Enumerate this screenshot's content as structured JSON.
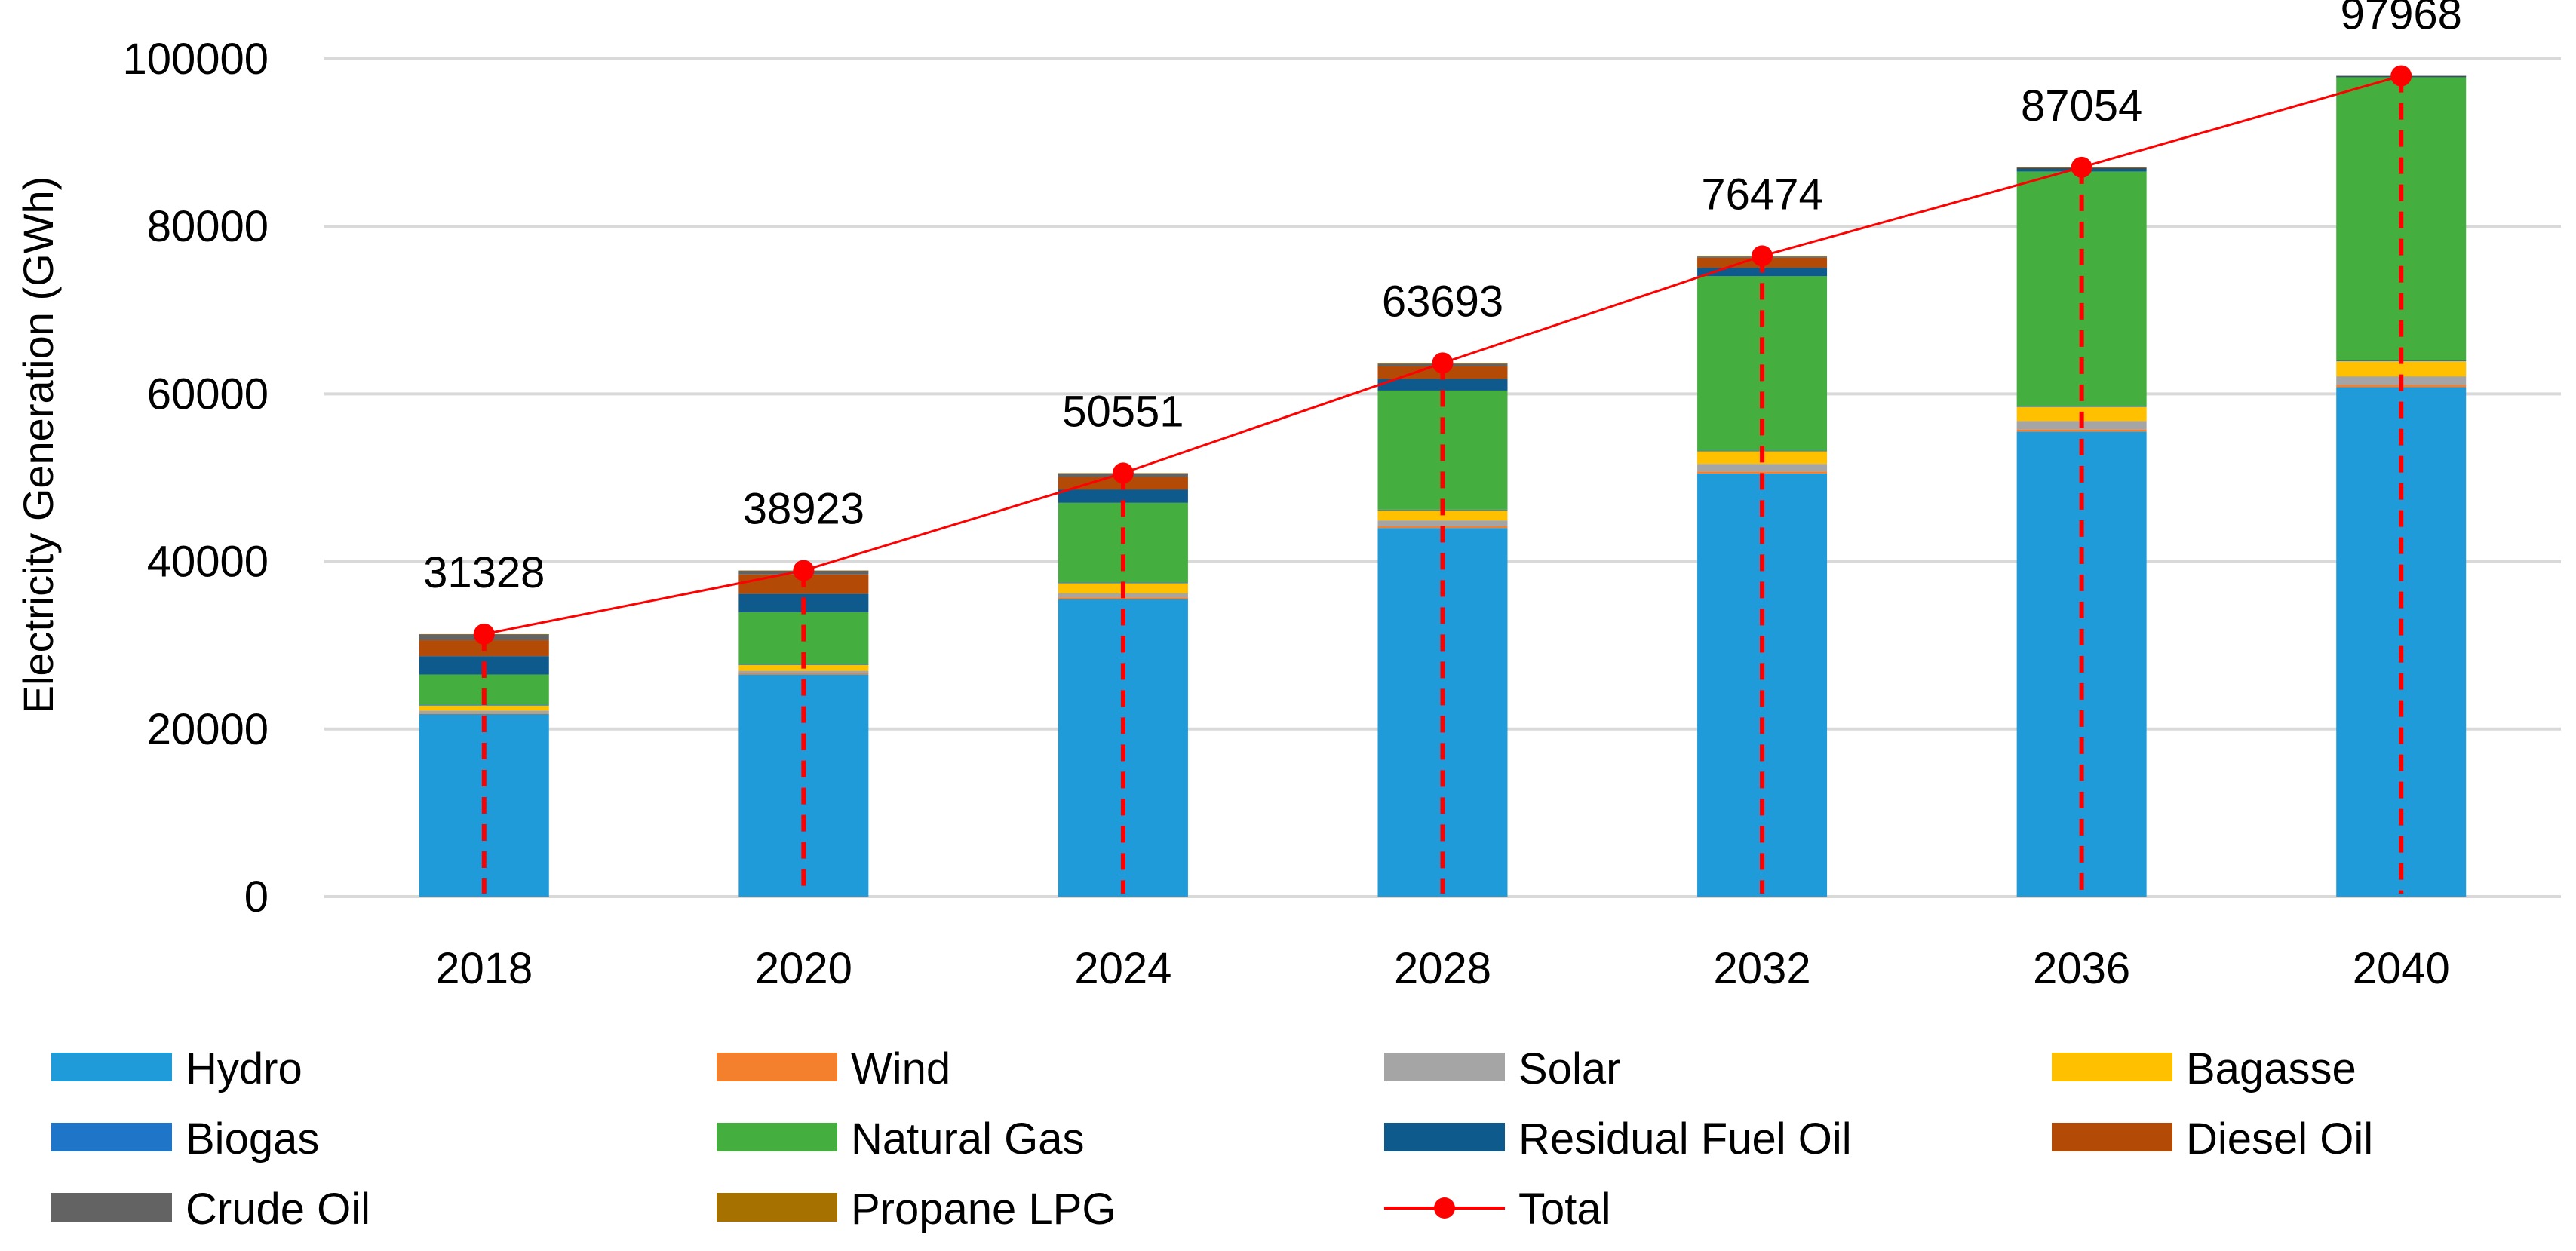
{
  "chart_data": {
    "type": "bar",
    "stacked": true,
    "title": "",
    "xlabel": "",
    "ylabel": "Electricity Generation (GWh)",
    "ylim": [
      0,
      100000
    ],
    "yticks": [
      "0",
      "20000",
      "40000",
      "60000",
      "80000",
      "100000"
    ],
    "categories": [
      "2018",
      "2020",
      "2024",
      "2028",
      "2032",
      "2036",
      "2040"
    ],
    "grid": "horizontal",
    "legend_position": "bottom",
    "series": [
      {
        "name": "Hydro",
        "color": "#1F9BD9",
        "values": [
          21800,
          26500,
          35500,
          44000,
          50500,
          55500,
          60800
        ]
      },
      {
        "name": "Wind",
        "color": "#F47F2C",
        "values": [
          100,
          150,
          200,
          200,
          250,
          250,
          300
        ]
      },
      {
        "name": "Solar",
        "color": "#A5A5A5",
        "values": [
          300,
          300,
          500,
          700,
          900,
          1000,
          1000
        ]
      },
      {
        "name": "Bagasse",
        "color": "#FFC000",
        "values": [
          600,
          700,
          1200,
          1200,
          1500,
          1700,
          1800
        ]
      },
      {
        "name": "Biogas",
        "color": "#1F75C8",
        "values": [
          100,
          100,
          100,
          100,
          100,
          100,
          100
        ]
      },
      {
        "name": "Natural Gas",
        "color": "#44AE3E",
        "values": [
          3600,
          6200,
          9500,
          14200,
          20800,
          28000,
          33800
        ]
      },
      {
        "name": "Residual Fuel Oil",
        "color": "#0F5A8C",
        "values": [
          2200,
          2200,
          1600,
          1400,
          1000,
          400,
          150
        ]
      },
      {
        "name": "Diesel Oil",
        "color": "#B34A06",
        "values": [
          1900,
          2300,
          1500,
          1500,
          1200,
          100,
          18
        ]
      },
      {
        "name": "Crude Oil",
        "color": "#636363",
        "values": [
          700,
          450,
          400,
          300,
          150,
          0,
          0
        ]
      },
      {
        "name": "Propane LPG",
        "color": "#A77100",
        "values": [
          28,
          23,
          51,
          93,
          74,
          4,
          0
        ]
      }
    ],
    "total": {
      "name": "Total",
      "color": "#FF0000",
      "values": [
        31328,
        38923,
        50551,
        63693,
        76474,
        87054,
        97968
      ],
      "labels": [
        "31328",
        "38923",
        "50551",
        "63693",
        "76474",
        "87054",
        "97968"
      ]
    }
  }
}
